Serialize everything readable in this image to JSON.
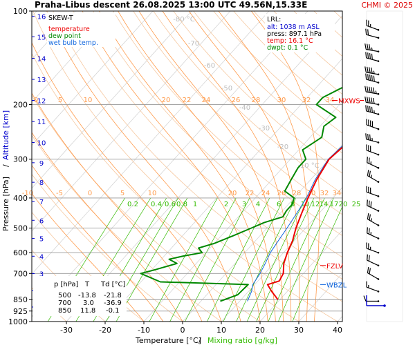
{
  "header": {
    "title": "Praha-Libus   descent   26.08.2025 13:00 UTC   49.56N,15.33E",
    "copyright": "CHMI © 2025"
  },
  "colors": {
    "temperature": "#ee0000",
    "dewpoint": "#008800",
    "wetbulb": "#1166dd",
    "mixing": "#33bb00",
    "dry_adiabat": "#f6c8a0",
    "sat_adiabat": "#ff9a4a",
    "isobar": "#999999",
    "isotherm": "#d0d0d0"
  },
  "legend": {
    "title": "SKEW-T",
    "items": [
      {
        "label": "temperature",
        "color": "#ee0000"
      },
      {
        "label": "dew point",
        "color": "#008800"
      },
      {
        "label": "wet bulb temp.",
        "color": "#1166dd"
      }
    ]
  },
  "lrl": {
    "title": "LRL:",
    "alt": "alt: 1038 m ASL",
    "press": "press: 897.1 hPa",
    "temp": "temp: 16.1 °C",
    "dwpt": "dwpt: 0.1 °C"
  },
  "level_markers": [
    {
      "label": "MXWS",
      "pressure": 194,
      "color": "#ee0000"
    },
    {
      "label": "FZLV",
      "pressure": 660,
      "color": "#ee0000"
    },
    {
      "label": "WBZL",
      "pressure": 760,
      "color": "#1166dd"
    }
  ],
  "table": {
    "headers": [
      "p [hPa]",
      "T",
      "Td [°C]"
    ],
    "rows": [
      [
        "500",
        "-13.8",
        "-21.8"
      ],
      [
        "700",
        "3.0",
        "-36.9"
      ],
      [
        "850",
        "11.8",
        "-0.1"
      ]
    ]
  },
  "chart_data": {
    "type": "line",
    "title": "Praha-Libus   descent   26.08.2025 13:00 UTC   49.56N,15.33E",
    "xlabel": "Temperature [°C]",
    "xlabel2": "Mixing ratio [g/kg]",
    "ylabel": "Pressure [hPa]",
    "ylabel2": "Altitude [km]",
    "xlim": [
      -35,
      43
    ],
    "ylim": [
      1000,
      100
    ],
    "x_ticks": [
      -30,
      -20,
      -10,
      0,
      10,
      20,
      30,
      40
    ],
    "pressure_ticks": [
      100,
      200,
      300,
      400,
      500,
      600,
      700,
      850,
      925,
      1000
    ],
    "altitude_ticks": [
      {
        "km": 1,
        "p": 898
      },
      {
        "km": 2,
        "p": 795
      },
      {
        "km": 3,
        "p": 701
      },
      {
        "km": 4,
        "p": 616
      },
      {
        "km": 5,
        "p": 540
      },
      {
        "km": 6,
        "p": 472
      },
      {
        "km": 7,
        "p": 411
      },
      {
        "km": 8,
        "p": 356
      },
      {
        "km": 9,
        "p": 308
      },
      {
        "km": 10,
        "p": 265
      },
      {
        "km": 11,
        "p": 227
      },
      {
        "km": 12,
        "p": 194
      },
      {
        "km": 13,
        "p": 166
      },
      {
        "km": 14,
        "p": 142
      },
      {
        "km": 15,
        "p": 121
      },
      {
        "km": 16,
        "p": 104
      }
    ],
    "mixing_ratio_labels": [
      "0.2",
      "0.4",
      "0.6",
      "0.8",
      "1",
      "2",
      "3",
      "4",
      "6",
      "8",
      "10",
      "12",
      "14",
      "17",
      "20",
      "25"
    ],
    "dry_adiabat_labels": [
      "-80 °C",
      "-70",
      "-60",
      "-50",
      "-40",
      "-30",
      "-20",
      "-10 °C"
    ],
    "sat_adiabat_labels_top": [
      "0",
      "5",
      "10",
      "20",
      "22",
      "24",
      "26",
      "28",
      "30",
      "32",
      "34"
    ],
    "sat_adiabat_labels_mid": [
      "-10",
      "-5",
      "0",
      "5",
      "10",
      "20",
      "22",
      "24",
      "26",
      "28",
      "30",
      "32",
      "34"
    ],
    "series": [
      {
        "name": "temperature",
        "points": [
          {
            "p": 850,
            "t": 19.5
          },
          {
            "p": 800,
            "t": 16
          },
          {
            "p": 760,
            "t": 13.3
          },
          {
            "p": 740,
            "t": 15.5
          },
          {
            "p": 700,
            "t": 14.8
          },
          {
            "p": 650,
            "t": 12.6
          },
          {
            "p": 600,
            "t": 11.0
          },
          {
            "p": 550,
            "t": 9.6
          },
          {
            "p": 500,
            "t": 7.5
          },
          {
            "p": 450,
            "t": 5.6
          },
          {
            "p": 400,
            "t": 3.6
          },
          {
            "p": 350,
            "t": 1.6
          },
          {
            "p": 300,
            "t": 0.0
          },
          {
            "p": 270,
            "t": 0.8
          },
          {
            "p": 240,
            "t": 0.8
          },
          {
            "p": 220,
            "t": 0.6
          },
          {
            "p": 200,
            "t": 0.9
          },
          {
            "p": 190,
            "t": 2.9
          },
          {
            "p": 180,
            "t": 5.0
          },
          {
            "p": 165,
            "t": 5.8
          },
          {
            "p": 150,
            "t": 7.0
          },
          {
            "p": 135,
            "t": 8.8
          },
          {
            "p": 125,
            "t": 11.0
          },
          {
            "p": 115,
            "t": 13.5
          },
          {
            "p": 108,
            "t": 16.0
          },
          {
            "p": 104,
            "t": 19.0
          },
          {
            "p": 100,
            "t": 21.5
          }
        ]
      },
      {
        "name": "dew point",
        "points": [
          {
            "p": 860,
            "t": 5
          },
          {
            "p": 820,
            "t": 8
          },
          {
            "p": 760,
            "t": 8.3
          },
          {
            "p": 745,
            "t": -15
          },
          {
            "p": 700,
            "t": -22
          },
          {
            "p": 680,
            "t": -19
          },
          {
            "p": 650,
            "t": -15
          },
          {
            "p": 630,
            "t": -18
          },
          {
            "p": 615,
            "t": -15
          },
          {
            "p": 600,
            "t": -11
          },
          {
            "p": 580,
            "t": -13
          },
          {
            "p": 560,
            "t": -10
          },
          {
            "p": 530,
            "t": -7
          },
          {
            "p": 500,
            "t": -4
          },
          {
            "p": 480,
            "t": -2
          },
          {
            "p": 460,
            "t": 1.5
          },
          {
            "p": 440,
            "t": 1
          },
          {
            "p": 420,
            "t": 1
          },
          {
            "p": 400,
            "t": 0
          },
          {
            "p": 380,
            "t": -4
          },
          {
            "p": 350,
            "t": -5
          },
          {
            "p": 320,
            "t": -6
          },
          {
            "p": 300,
            "t": -6
          },
          {
            "p": 280,
            "t": -9
          },
          {
            "p": 255,
            "t": -7
          },
          {
            "p": 235,
            "t": -9
          },
          {
            "p": 220,
            "t": -8
          },
          {
            "p": 200,
            "t": -16
          },
          {
            "p": 190,
            "t": -16
          },
          {
            "p": 175,
            "t": -13
          },
          {
            "p": 160,
            "t": -14
          },
          {
            "p": 140,
            "t": -13
          },
          {
            "p": 125,
            "t": -12
          },
          {
            "p": 112,
            "t": -6
          },
          {
            "p": 104,
            "t": -3
          },
          {
            "p": 100,
            "t": 1
          }
        ]
      },
      {
        "name": "wet bulb temp.",
        "points": [
          {
            "p": 860,
            "t": 12
          },
          {
            "p": 800,
            "t": 10.8
          },
          {
            "p": 760,
            "t": 9.5
          },
          {
            "p": 700,
            "t": 8.8
          },
          {
            "p": 650,
            "t": 7.8
          },
          {
            "p": 600,
            "t": 6.6
          },
          {
            "p": 550,
            "t": 5.9
          },
          {
            "p": 500,
            "t": 5.2
          },
          {
            "p": 450,
            "t": 4.3
          },
          {
            "p": 400,
            "t": 3.2
          },
          {
            "p": 350,
            "t": 1.2
          },
          {
            "p": 300,
            "t": -0.2
          },
          {
            "p": 270,
            "t": 0.4
          },
          {
            "p": 240,
            "t": 0.3
          },
          {
            "p": 215,
            "t": 0.3
          }
        ]
      }
    ],
    "wind_barbs": [
      {
        "p": 115,
        "dir": 290,
        "kt": 25
      },
      {
        "p": 122,
        "dir": 285,
        "kt": 20
      },
      {
        "p": 135,
        "dir": 280,
        "kt": 35
      },
      {
        "p": 145,
        "dir": 285,
        "kt": 40
      },
      {
        "p": 160,
        "dir": 280,
        "kt": 45
      },
      {
        "p": 170,
        "dir": 285,
        "kt": 50
      },
      {
        "p": 185,
        "dir": 280,
        "kt": 55
      },
      {
        "p": 200,
        "dir": 280,
        "kt": 50
      },
      {
        "p": 215,
        "dir": 285,
        "kt": 45
      },
      {
        "p": 240,
        "dir": 290,
        "kt": 40
      },
      {
        "p": 265,
        "dir": 285,
        "kt": 35
      },
      {
        "p": 290,
        "dir": 290,
        "kt": 30
      },
      {
        "p": 320,
        "dir": 295,
        "kt": 25
      },
      {
        "p": 355,
        "dir": 300,
        "kt": 25
      },
      {
        "p": 395,
        "dir": 290,
        "kt": 30
      },
      {
        "p": 440,
        "dir": 295,
        "kt": 30
      },
      {
        "p": 490,
        "dir": 300,
        "kt": 25
      },
      {
        "p": 540,
        "dir": 295,
        "kt": 25
      },
      {
        "p": 600,
        "dir": 290,
        "kt": 25
      },
      {
        "p": 660,
        "dir": 295,
        "kt": 20
      },
      {
        "p": 730,
        "dir": 300,
        "kt": 20
      },
      {
        "p": 800,
        "dir": 290,
        "kt": 15
      },
      {
        "p": 860,
        "dir": 270,
        "kt": 10
      }
    ]
  }
}
